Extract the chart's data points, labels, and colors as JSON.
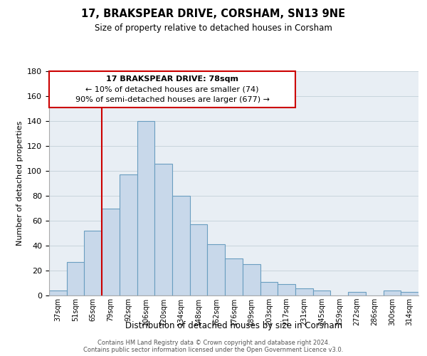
{
  "title": "17, BRAKSPEAR DRIVE, CORSHAM, SN13 9NE",
  "subtitle": "Size of property relative to detached houses in Corsham",
  "xlabel": "Distribution of detached houses by size in Corsham",
  "ylabel": "Number of detached properties",
  "bar_labels": [
    "37sqm",
    "51sqm",
    "65sqm",
    "79sqm",
    "92sqm",
    "106sqm",
    "120sqm",
    "134sqm",
    "148sqm",
    "162sqm",
    "176sqm",
    "189sqm",
    "203sqm",
    "217sqm",
    "231sqm",
    "245sqm",
    "259sqm",
    "272sqm",
    "286sqm",
    "300sqm",
    "314sqm"
  ],
  "bar_values": [
    4,
    27,
    52,
    70,
    97,
    140,
    106,
    80,
    57,
    41,
    30,
    25,
    11,
    9,
    6,
    4,
    0,
    3,
    0,
    4,
    3
  ],
  "bar_color": "#c8d8ea",
  "bar_edge_color": "#6a9ec0",
  "ylim": [
    0,
    180
  ],
  "yticks": [
    0,
    20,
    40,
    60,
    80,
    100,
    120,
    140,
    160,
    180
  ],
  "property_line_bar_index": 3,
  "annotation_line1": "17 BRAKSPEAR DRIVE: 78sqm",
  "annotation_line2": "← 10% of detached houses are smaller (74)",
  "annotation_line3": "90% of semi-detached houses are larger (677) →",
  "annotation_box_color": "#ffffff",
  "annotation_box_edge": "#cc0000",
  "vertical_line_color": "#cc0000",
  "footer_line1": "Contains HM Land Registry data © Crown copyright and database right 2024.",
  "footer_line2": "Contains public sector information licensed under the Open Government Licence v3.0.",
  "grid_color": "#c8d4dc",
  "bg_color": "#e8eef4"
}
